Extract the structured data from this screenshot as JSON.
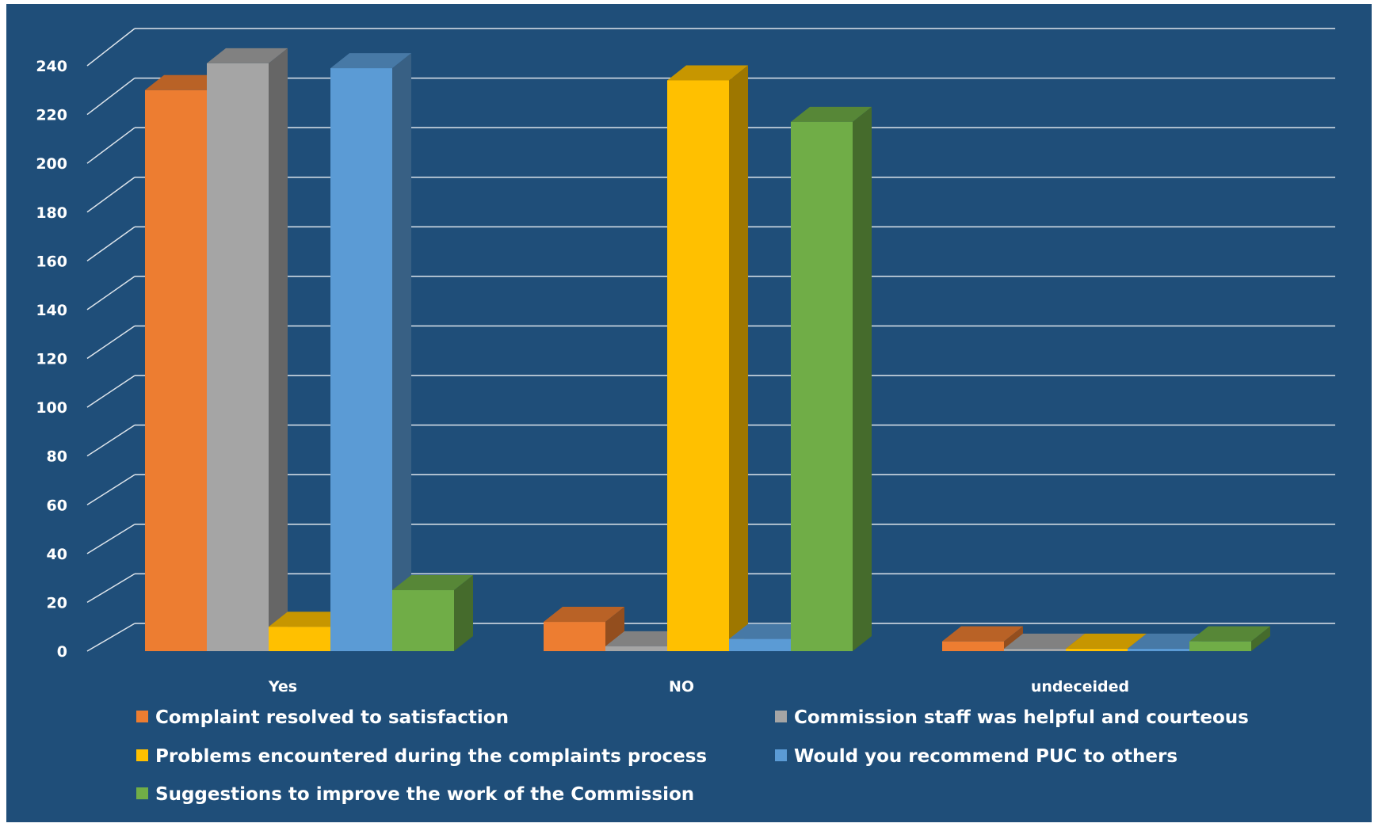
{
  "chart_data": {
    "type": "bar",
    "three_d": true,
    "categories": [
      "Yes",
      "NO",
      "undeceided"
    ],
    "series": [
      {
        "name": "Complaint resolved to satisfaction",
        "color": "#ED7D31",
        "values": [
          230,
          12,
          4
        ]
      },
      {
        "name": "Commission staff was helpful and courteous",
        "color": "#A5A5A5",
        "values": [
          241,
          2,
          1
        ]
      },
      {
        "name": "Problems encountered during the complaints process",
        "color": "#FFC000",
        "values": [
          10,
          234,
          1
        ]
      },
      {
        "name": "Would you recommend PUC to others",
        "color": "#5B9BD5",
        "values": [
          239,
          5,
          1
        ]
      },
      {
        "name": "Suggestions to improve the work of the Commission",
        "color": "#70AD47",
        "values": [
          25,
          217,
          4
        ]
      }
    ],
    "yticks": [
      "0",
      "20",
      "40",
      "60",
      "80",
      "100",
      "120",
      "140",
      "160",
      "180",
      "200",
      "220",
      "240"
    ],
    "ylim": [
      0,
      240
    ],
    "grid": true,
    "background": "#1F4E79",
    "legend_position": "bottom"
  }
}
